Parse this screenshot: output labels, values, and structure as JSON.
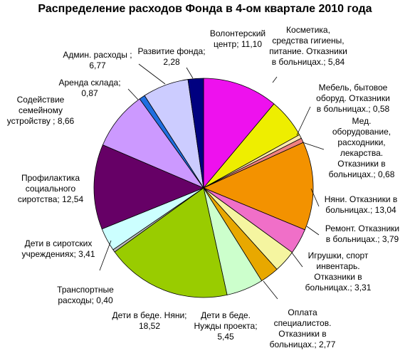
{
  "chart_data": {
    "type": "pie",
    "title": "Распределение расходов Фонда в 4-ом квартале 2010 года",
    "slices": [
      {
        "label": "Волонтерский центр",
        "value": 11.1,
        "value_text": "11,10",
        "color": "#ee11ee"
      },
      {
        "label": "Косметика, средства гигиены, питание. Отказники в больницах.",
        "value": 5.84,
        "value_text": "5,84",
        "color": "#eeee00"
      },
      {
        "label": "Мебель, бытовое оборуд. Отказники в больницах.",
        "value": 0.58,
        "value_text": "0,58",
        "color": "#ffe8b0"
      },
      {
        "label": "Мед. оборудование, расходники, лекарства. Отказники в больницах.",
        "value": 0.68,
        "value_text": "0,68",
        "color": "#f08080"
      },
      {
        "label": "Няни. Отказники в больницах.",
        "value": 13.04,
        "value_text": "13,04",
        "color": "#f39200"
      },
      {
        "label": "Ремонт. Отказники в больницах.",
        "value": 3.79,
        "value_text": "3,79",
        "color": "#f06fc8"
      },
      {
        "label": "Игрушки, спорт инвентарь. Отказники в больницах.",
        "value": 3.31,
        "value_text": "3,31",
        "color": "#f5f5a0"
      },
      {
        "label": "Оплата специалистов. Отказники в больницах.",
        "value": 2.77,
        "value_text": "2,77",
        "color": "#e8a800"
      },
      {
        "label": "Дети в беде. Нужды проекта",
        "value": 5.45,
        "value_text": "5,45",
        "color": "#ccffcc"
      },
      {
        "label": "Дети в беде. Няни",
        "value": 18.52,
        "value_text": "18,52",
        "color": "#99cc00"
      },
      {
        "label": "Транспортные расходы",
        "value": 0.4,
        "value_text": "0,40",
        "color": "#bbbbbb"
      },
      {
        "label": "Дети в сиротских учреждениях",
        "value": 3.41,
        "value_text": "3,41",
        "color": "#ccffff"
      },
      {
        "label": "Профилактика социального сиротства",
        "value": 12.54,
        "value_text": "12,54",
        "color": "#660066"
      },
      {
        "label": "Содействие семейному устройству",
        "value": 8.66,
        "value_text": "8,66",
        "color": "#cc99ff"
      },
      {
        "label": "Аренда склада",
        "value": 0.87,
        "value_text": "0,87",
        "color": "#1f6ee0"
      },
      {
        "label": "Админ. расходы",
        "value": 6.77,
        "value_text": "6,77",
        "color": "#ccccff"
      },
      {
        "label": "Развитие фонда",
        "value": 2.28,
        "value_text": "2,28",
        "color": "#000080"
      }
    ],
    "start_angle_deg": 0,
    "direction": "clockwise",
    "legend": "none",
    "data_labels": "category; value"
  }
}
